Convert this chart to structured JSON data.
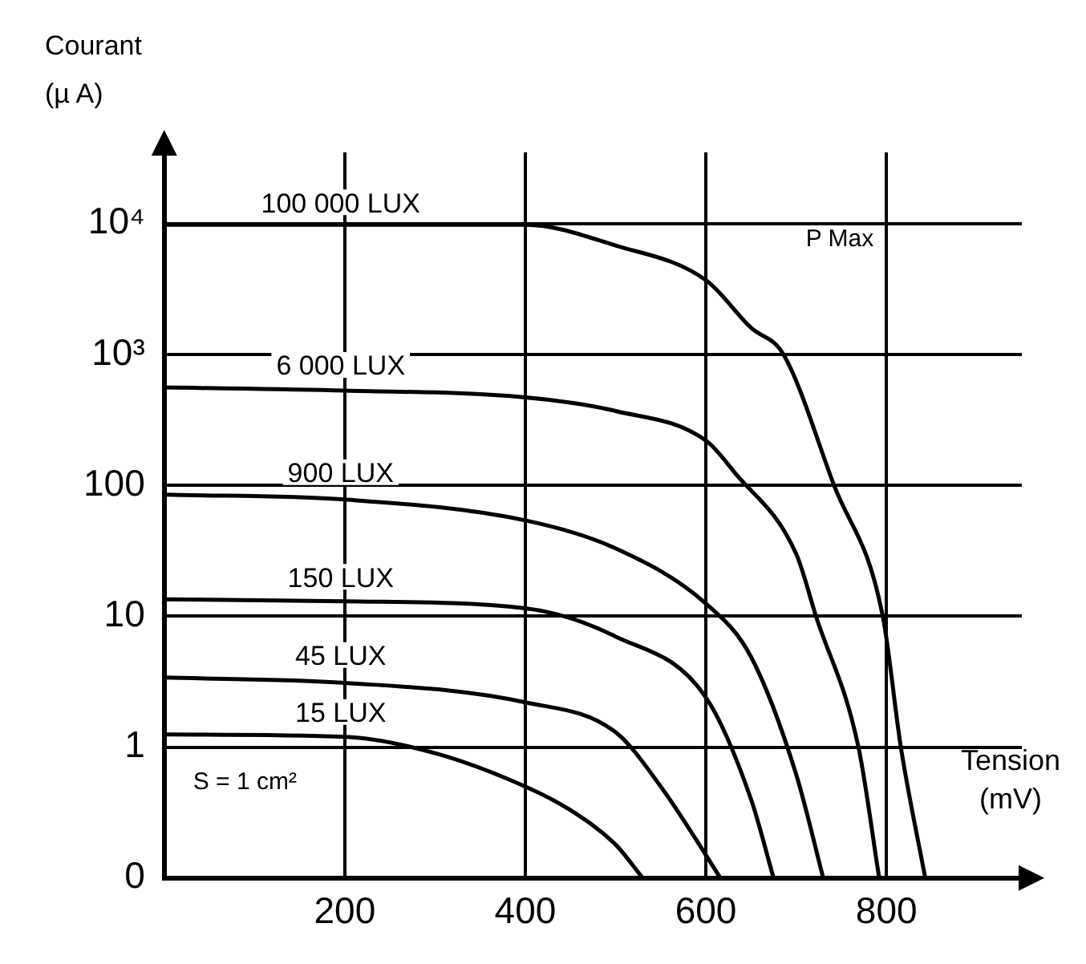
{
  "chart_data": {
    "type": "line",
    "xlabel": "Tension (mV)",
    "ylabel": "Courant (µ A)",
    "series": [
      {
        "name": "100 000 LUX",
        "color": "#000000",
        "x": [
          0,
          400,
          500,
          600,
          650,
          686,
          742,
          796,
          816,
          843
        ],
        "values": [
          9800,
          9800,
          6800,
          3700,
          1600,
          1000,
          100,
          10,
          1,
          0.1
        ]
      },
      {
        "name": "6 000 LUX",
        "color": "#000000",
        "x": [
          0,
          200,
          400,
          500,
          600,
          632,
          700,
          722,
          769,
          792
        ],
        "values": [
          560,
          530,
          470,
          370,
          220,
          125,
          30,
          10,
          1,
          0.1
        ]
      },
      {
        "name": "900 LUX",
        "color": "#000000",
        "x": [
          0,
          200,
          400,
          500,
          600,
          650,
          700,
          730
        ],
        "values": [
          85,
          78,
          54,
          33,
          12.5,
          4.9,
          0.62,
          0.1
        ]
      },
      {
        "name": "150 LUX",
        "color": "#000000",
        "x": [
          0,
          200,
          400,
          500,
          600,
          650,
          675
        ],
        "values": [
          13.5,
          13,
          11.5,
          7,
          2.4,
          0.4,
          0.1
        ]
      },
      {
        "name": "45 LUX",
        "color": "#000000",
        "x": [
          0,
          200,
          400,
          500,
          550,
          600,
          616
        ],
        "values": [
          3.4,
          3.1,
          2.2,
          1.3,
          0.5,
          0.15,
          0.1
        ]
      },
      {
        "name": "15 LUX",
        "color": "#000000",
        "x": [
          0,
          200,
          300,
          400,
          450,
          500,
          530
        ],
        "values": [
          1.25,
          1.2,
          0.9,
          0.5,
          0.33,
          0.18,
          0.1
        ]
      }
    ],
    "annotations": [
      "P Max",
      "S = 1 cm²"
    ],
    "xlim": [
      0,
      950
    ],
    "xticks": [
      200,
      400,
      600,
      800
    ],
    "ylim": [
      0.1,
      35000
    ],
    "yticks": [
      {
        "value": 0.1,
        "label": "0"
      },
      1,
      10,
      100,
      {
        "value": 1000,
        "label": "10³"
      },
      {
        "value": 10000,
        "label": "10⁴"
      }
    ],
    "log": "y",
    "grid": true,
    "legend": false,
    "marker": "none",
    "line_style": "solid"
  }
}
